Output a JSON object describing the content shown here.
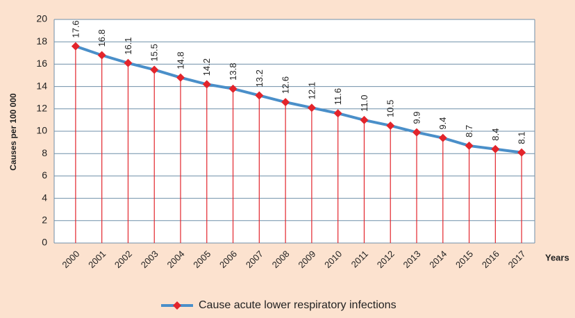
{
  "chart_data": {
    "type": "line",
    "y_label": "Causes per 100 000",
    "x_label": "Years",
    "categories": [
      "2000",
      "2001",
      "2002",
      "2003",
      "2004",
      "2005",
      "2006",
      "2007",
      "2008",
      "2009",
      "2010",
      "2011",
      "2012",
      "2013",
      "2014",
      "2015",
      "2016",
      "2017"
    ],
    "series": [
      {
        "name": "Cause acute lower respiratory infections",
        "color": "#4a8fc9",
        "marker_color": "#e3242b",
        "values": [
          17.6,
          16.8,
          16.1,
          15.5,
          14.8,
          14.2,
          13.8,
          13.2,
          12.6,
          12.1,
          11.6,
          11.0,
          10.5,
          9.9,
          9.4,
          8.7,
          8.4,
          8.1
        ],
        "value_labels": [
          "17.6",
          "16.8",
          "16.1",
          "15.5",
          "14.8",
          "14.2",
          "13.8",
          "13.2",
          "12.6",
          "12.1",
          "11.6",
          "11.0",
          "10.5",
          "9.9",
          "9.4",
          "8.7",
          "8.4",
          "8.1"
        ]
      }
    ],
    "ylim": [
      0,
      20
    ],
    "yticks": [
      0,
      2,
      4,
      6,
      8,
      10,
      12,
      14,
      16,
      18,
      20
    ],
    "grid": true,
    "legend": "bottom"
  }
}
